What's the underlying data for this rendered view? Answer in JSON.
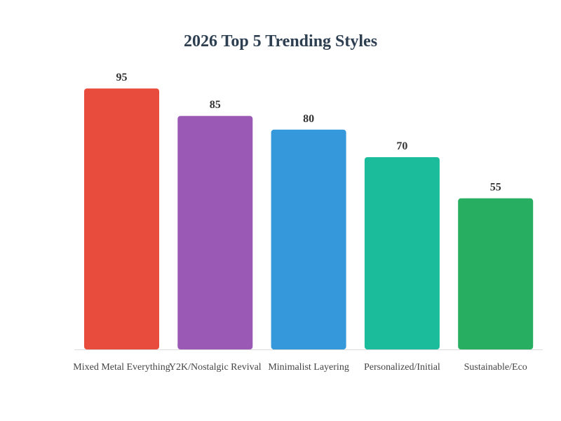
{
  "chart_data": {
    "type": "bar",
    "title": "2026 Top 5 Trending Styles",
    "categories": [
      "Mixed Metal Everything",
      "Y2K/Nostalgic Revival",
      "Minimalist Layering",
      "Personalized/Initial",
      "Sustainable/Eco"
    ],
    "values": [
      95,
      85,
      80,
      70,
      55
    ],
    "colors": [
      "#e74c3c",
      "#9b59b6",
      "#3498db",
      "#1abc9c",
      "#27ae60"
    ],
    "ylim": [
      0,
      100
    ],
    "grid": false,
    "legend": "none",
    "data_labels": true
  }
}
